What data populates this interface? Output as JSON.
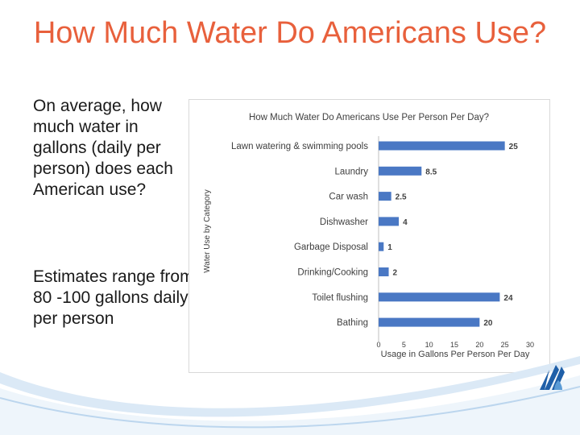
{
  "slide": {
    "title": "How Much Water Do Americans Use?",
    "bullet_1": "On average, how much water in gallons (daily per person) does each American use?",
    "bullet_2": "Estimates range from 80 -100 gallons daily per person"
  },
  "chart_data": {
    "type": "bar",
    "orientation": "horizontal",
    "title": "How Much Water Do Americans Use Per Person Per Day?",
    "xlabel": "Usage in Gallons Per Person Per Day",
    "ylabel": "Water Use by Category",
    "categories": [
      "Lawn watering & swimming pools",
      "Laundry",
      "Car wash",
      "Dishwasher",
      "Garbage Disposal",
      "Drinking/Cooking",
      "Toilet flushing",
      "Bathing"
    ],
    "values": [
      25,
      8.5,
      2.5,
      4,
      1,
      2,
      24,
      20
    ],
    "value_labels": [
      "25",
      "8.5",
      "2.5",
      "4",
      "1",
      "2",
      "24",
      "20"
    ],
    "xlim": [
      0,
      30
    ],
    "x_ticks": [
      "0",
      "5",
      "10",
      "15",
      "20",
      "25",
      "30"
    ],
    "grid": false,
    "legend": "none",
    "bar_color": "#4a78c4"
  },
  "colors": {
    "title": "#e8603c",
    "swoosh": "#5b9bd5",
    "logo": "#1f5fa8"
  }
}
